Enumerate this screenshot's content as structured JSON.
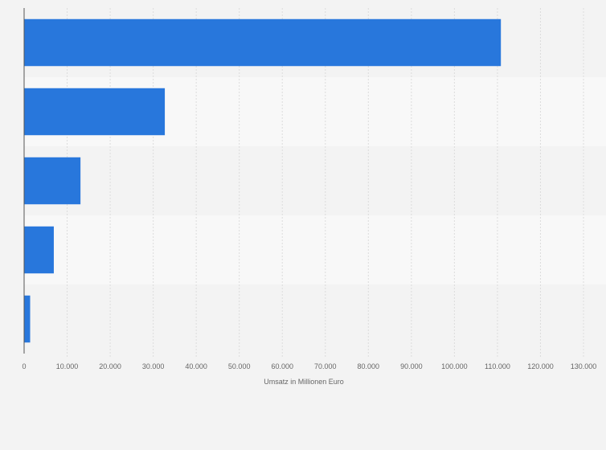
{
  "chart_data": {
    "type": "bar",
    "orientation": "horizontal",
    "categories": [
      "",
      "",
      "",
      "",
      ""
    ],
    "values": [
      110800,
      32700,
      13100,
      6900,
      1400
    ],
    "xlabel": "Umsatz in Millionen Euro",
    "ylabel": "",
    "xlim": [
      0,
      130000
    ],
    "xticks": [
      0,
      10000,
      20000,
      30000,
      40000,
      50000,
      60000,
      70000,
      80000,
      90000,
      100000,
      110000,
      120000,
      130000
    ],
    "xtick_labels": [
      "0",
      "10.000",
      "20.000",
      "30.000",
      "40.000",
      "50.000",
      "60.000",
      "70.000",
      "80.000",
      "90.000",
      "100.000",
      "110.000",
      "120.000",
      "130.000"
    ],
    "grid": true,
    "bar_color": "#2877dc",
    "band_colors": [
      "#f3f3f3",
      "#f8f8f8"
    ],
    "background_color": "#f3f3f3",
    "gridline_color": "#dcdcdc",
    "axis_color": "#555555",
    "tick_label_color": "#666666"
  }
}
